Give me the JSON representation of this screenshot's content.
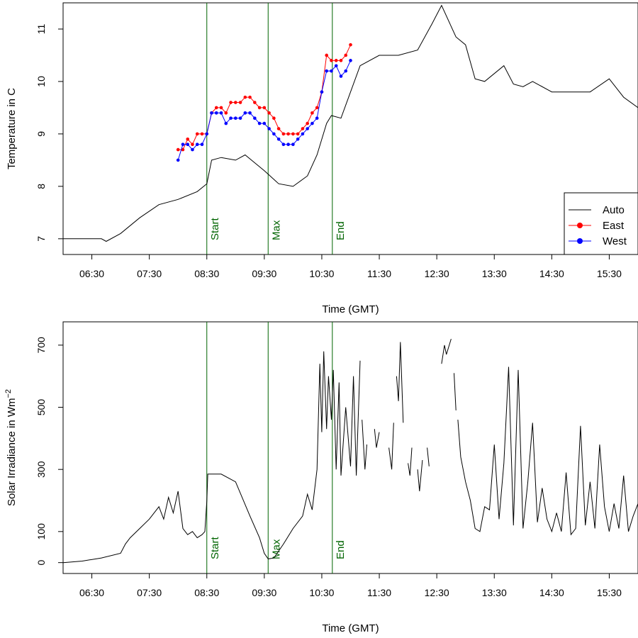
{
  "figure": {
    "xtick_labels": [
      "06:30",
      "07:30",
      "08:30",
      "09:30",
      "10:30",
      "11:30",
      "12:30",
      "13:30",
      "14:30",
      "15:30"
    ],
    "event_color": "#006400"
  },
  "chart_data": [
    {
      "type": "line",
      "xlabel": "Time (GMT)",
      "ylabel": "Temperature in C",
      "xlim": [
        "06:00",
        "16:00"
      ],
      "ylim": [
        6.7,
        11.5
      ],
      "yticks": [
        7,
        8,
        9,
        10,
        11
      ],
      "grid": false,
      "legend": {
        "position": "bottom-right",
        "entries": [
          {
            "name": "Auto",
            "color": "#000000",
            "marker": "none"
          },
          {
            "name": "East",
            "color": "#ff0000",
            "marker": "circle"
          },
          {
            "name": "West",
            "color": "#0000ff",
            "marker": "circle"
          }
        ]
      },
      "events": [
        {
          "label": "Start",
          "time": "08:30"
        },
        {
          "label": "Max",
          "time": "09:34"
        },
        {
          "label": "End",
          "time": "10:41"
        }
      ],
      "series": [
        {
          "name": "Auto",
          "color": "#000000",
          "x": [
            "06:00",
            "06:20",
            "06:40",
            "06:45",
            "07:00",
            "07:20",
            "07:40",
            "08:00",
            "08:20",
            "08:30",
            "08:35",
            "08:45",
            "09:00",
            "09:10",
            "09:20",
            "09:30",
            "09:45",
            "10:00",
            "10:15",
            "10:25",
            "10:35",
            "10:40",
            "10:50",
            "11:00",
            "11:10",
            "11:30",
            "11:50",
            "12:10",
            "12:25",
            "12:35",
            "12:50",
            "13:00",
            "13:10",
            "13:20",
            "13:40",
            "13:50",
            "14:00",
            "14:10",
            "14:30",
            "14:50",
            "15:10",
            "15:30",
            "15:45",
            "16:00"
          ],
          "y": [
            7.0,
            7.0,
            7.0,
            6.95,
            7.1,
            7.4,
            7.65,
            7.75,
            7.9,
            8.05,
            8.5,
            8.55,
            8.5,
            8.6,
            8.45,
            8.3,
            8.05,
            8.0,
            8.2,
            8.6,
            9.2,
            9.35,
            9.3,
            9.8,
            10.3,
            10.5,
            10.5,
            10.6,
            11.1,
            11.45,
            10.85,
            10.7,
            10.05,
            10.0,
            10.3,
            9.95,
            9.9,
            10.0,
            9.8,
            9.8,
            9.8,
            10.05,
            9.7,
            9.5
          ]
        },
        {
          "name": "East",
          "color": "#ff0000",
          "x": [
            "08:00",
            "08:05",
            "08:10",
            "08:15",
            "08:20",
            "08:25",
            "08:30",
            "08:35",
            "08:40",
            "08:45",
            "08:50",
            "08:55",
            "09:00",
            "09:05",
            "09:10",
            "09:15",
            "09:20",
            "09:25",
            "09:30",
            "09:35",
            "09:40",
            "09:45",
            "09:50",
            "09:55",
            "10:00",
            "10:05",
            "10:10",
            "10:15",
            "10:20",
            "10:25",
            "10:30",
            "10:35",
            "10:40",
            "10:45",
            "10:50",
            "10:55",
            "11:00"
          ],
          "y": [
            8.7,
            8.7,
            8.9,
            8.8,
            9.0,
            9.0,
            9.0,
            9.4,
            9.5,
            9.5,
            9.4,
            9.6,
            9.6,
            9.6,
            9.7,
            9.7,
            9.6,
            9.5,
            9.5,
            9.4,
            9.3,
            9.1,
            9.0,
            9.0,
            9.0,
            9.0,
            9.1,
            9.2,
            9.4,
            9.5,
            9.8,
            10.5,
            10.4,
            10.4,
            10.4,
            10.5,
            10.7
          ]
        },
        {
          "name": "West",
          "color": "#0000ff",
          "x": [
            "08:00",
            "08:05",
            "08:10",
            "08:15",
            "08:20",
            "08:25",
            "08:30",
            "08:35",
            "08:40",
            "08:45",
            "08:50",
            "08:55",
            "09:00",
            "09:05",
            "09:10",
            "09:15",
            "09:20",
            "09:25",
            "09:30",
            "09:35",
            "09:40",
            "09:45",
            "09:50",
            "09:55",
            "10:00",
            "10:05",
            "10:10",
            "10:15",
            "10:20",
            "10:25",
            "10:30",
            "10:35",
            "10:40",
            "10:45",
            "10:50",
            "10:55",
            "11:00"
          ],
          "y": [
            8.5,
            8.8,
            8.8,
            8.7,
            8.8,
            8.8,
            9.0,
            9.4,
            9.4,
            9.4,
            9.2,
            9.3,
            9.3,
            9.3,
            9.4,
            9.4,
            9.3,
            9.2,
            9.2,
            9.1,
            9.0,
            8.9,
            8.8,
            8.8,
            8.8,
            8.9,
            9.0,
            9.1,
            9.2,
            9.3,
            9.8,
            10.2,
            10.2,
            10.3,
            10.1,
            10.2,
            10.4
          ]
        }
      ]
    },
    {
      "type": "line",
      "xlabel": "Time (GMT)",
      "ylabel": "Solar Irradiance in Wm",
      "ylabel_superscript": "−2",
      "xlim": [
        "06:00",
        "16:00"
      ],
      "ylim": [
        -35,
        775
      ],
      "yticks": [
        0,
        100,
        300,
        500,
        700
      ],
      "grid": false,
      "events": [
        {
          "label": "Start",
          "time": "08:30"
        },
        {
          "label": "Max",
          "time": "09:34"
        },
        {
          "label": "End",
          "time": "10:41"
        }
      ],
      "series": [
        {
          "name": "Irradiance",
          "color": "#000000",
          "segments": [
            {
              "x": [
                "06:00",
                "06:20",
                "06:40",
                "07:00",
                "07:05",
                "07:10",
                "07:20",
                "07:30",
                "07:40",
                "07:45",
                "07:50",
                "07:55",
                "08:00",
                "08:05",
                "08:10",
                "08:15",
                "08:20",
                "08:25",
                "08:28",
                "08:30",
                "08:31",
                "08:45",
                "09:00",
                "09:15",
                "09:25",
                "09:30",
                "09:34",
                "09:40",
                "09:50",
                "10:00",
                "10:10",
                "10:15",
                "10:20",
                "10:25",
                "10:28",
                "10:30",
                "10:32",
                "10:35",
                "10:37",
                "10:40",
                "10:42",
                "10:45",
                "10:48",
                "10:50",
                "10:55",
                "11:00",
                "11:03",
                "11:06",
                "11:10"
              ],
              "y": [
                0,
                5,
                15,
                30,
                60,
                80,
                110,
                140,
                180,
                140,
                210,
                160,
                230,
                110,
                90,
                100,
                80,
                90,
                100,
                200,
                285,
                285,
                260,
                150,
                80,
                30,
                12,
                15,
                60,
                110,
                150,
                220,
                170,
                300,
                640,
                420,
                680,
                430,
                600,
                460,
                620,
                300,
                580,
                280,
                500,
                310,
                600,
                280,
                650
              ]
            },
            {
              "x": [
                "11:12",
                "11:15",
                "11:17"
              ],
              "y": [
                460,
                300,
                380
              ]
            },
            {
              "x": [
                "11:25",
                "11:27",
                "11:30"
              ],
              "y": [
                430,
                370,
                420
              ]
            },
            {
              "x": [
                "11:40",
                "11:43",
                "11:45"
              ],
              "y": [
                370,
                300,
                450
              ]
            },
            {
              "x": [
                "11:48",
                "11:50",
                "11:52",
                "11:55"
              ],
              "y": [
                600,
                520,
                710,
                450
              ]
            },
            {
              "x": [
                "12:00",
                "12:02",
                "12:04"
              ],
              "y": [
                320,
                280,
                370
              ]
            },
            {
              "x": [
                "12:10",
                "12:12",
                "12:15"
              ],
              "y": [
                300,
                230,
                330
              ]
            },
            {
              "x": [
                "12:20",
                "12:22"
              ],
              "y": [
                370,
                310
              ]
            },
            {
              "x": [
                "12:35",
                "12:38",
                "12:40",
                "12:45"
              ],
              "y": [
                640,
                700,
                670,
                720
              ]
            },
            {
              "x": [
                "12:48",
                "12:50"
              ],
              "y": [
                610,
                490
              ]
            },
            {
              "x": [
                "12:52",
                "12:55",
                "13:00",
                "13:05",
                "13:10",
                "13:15",
                "13:20",
                "13:25",
                "13:30",
                "13:35",
                "13:40",
                "13:45",
                "13:50",
                "13:55",
                "14:00",
                "14:05",
                "14:10",
                "14:15",
                "14:20",
                "14:25",
                "14:30",
                "14:35",
                "14:40",
                "14:45",
                "14:50",
                "14:55",
                "15:00",
                "15:05",
                "15:10",
                "15:15",
                "15:20",
                "15:25",
                "15:30",
                "15:35",
                "15:40",
                "15:45",
                "15:50",
                "15:55",
                "16:00"
              ],
              "y": [
                460,
                340,
                260,
                200,
                110,
                100,
                180,
                170,
                380,
                140,
                320,
                630,
                120,
                620,
                110,
                260,
                450,
                130,
                240,
                140,
                100,
                160,
                100,
                290,
                90,
                110,
                440,
                120,
                260,
                110,
                380,
                180,
                100,
                190,
                110,
                280,
                100,
                150,
                190
              ]
            }
          ]
        }
      ]
    }
  ]
}
